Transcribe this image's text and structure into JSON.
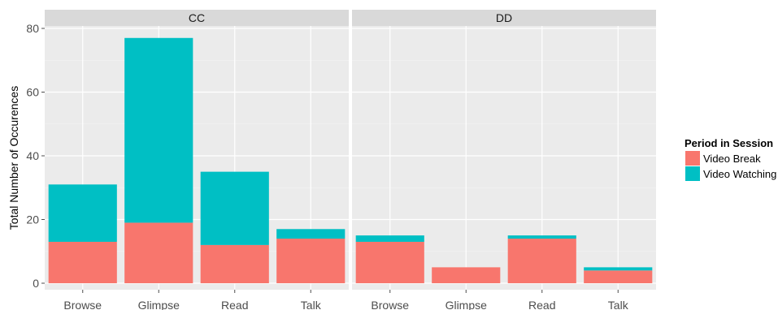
{
  "chart_data": {
    "type": "bar",
    "stacked": true,
    "facets": [
      "CC",
      "DD"
    ],
    "categories": [
      "Browse",
      "Glimpse",
      "Read",
      "Talk"
    ],
    "ylabel": "Total Number of Occurences",
    "xlabel": "",
    "ylim": [
      0,
      80
    ],
    "yticks": [
      0,
      20,
      40,
      60,
      80
    ],
    "grid": true,
    "legend": {
      "title": "Period in Session",
      "placement": "right",
      "entries": [
        "Video Break",
        "Video Watching"
      ]
    },
    "series": [
      {
        "name": "Video Break",
        "color": "#F8766D",
        "values": {
          "CC": [
            13,
            19,
            12,
            14
          ],
          "DD": [
            13,
            5,
            14,
            4
          ]
        }
      },
      {
        "name": "Video Watching",
        "color": "#00BFC4",
        "values": {
          "CC": [
            18,
            58,
            23,
            3
          ],
          "DD": [
            2,
            0,
            1,
            1
          ]
        }
      }
    ]
  }
}
